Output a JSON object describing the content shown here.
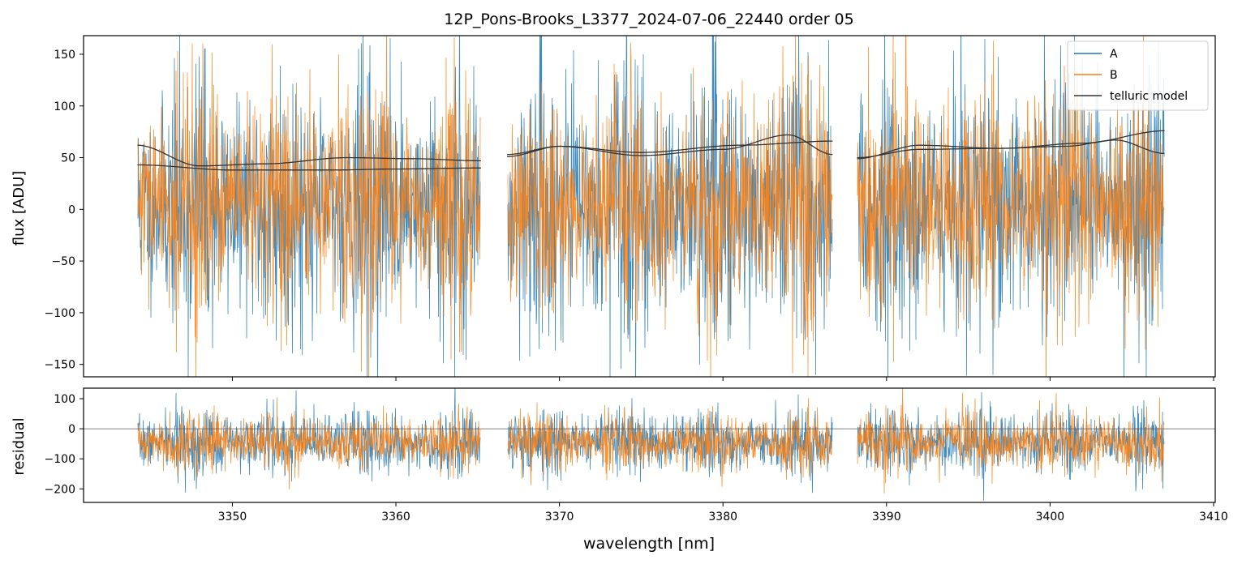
{
  "chart_data": [
    {
      "type": "line",
      "title": "12P_Pons-Brooks_L3377_2024-07-06_22440  order 05",
      "xlabel": "",
      "ylabel": "flux [ADU]",
      "xlim": [
        3340.9,
        3410.1
      ],
      "ylim": [
        -162,
        168
      ],
      "yticks": [
        -150,
        -100,
        -50,
        0,
        50,
        100,
        150
      ],
      "yticklabels": [
        "−150",
        "−100",
        "−50",
        "0",
        "50",
        "100",
        "150"
      ],
      "segments": [
        [
          3344.2,
          3365.2
        ],
        [
          3366.8,
          3386.7
        ],
        [
          3388.2,
          3407.0
        ]
      ],
      "legend": {
        "placement": "top-right",
        "entries": [
          {
            "label": "A",
            "color": "#1f77b4"
          },
          {
            "label": "B",
            "color": "#ff7f0e"
          },
          {
            "label": "telluric model",
            "color": "#333333"
          }
        ]
      },
      "series": [
        {
          "name": "A",
          "color": "#1f77b4",
          "center": 5,
          "amplitude": 58,
          "seed": 11
        },
        {
          "name": "B",
          "color": "#ff7f0e",
          "center": 5,
          "amplitude": 52,
          "seed": 29
        },
        {
          "name": "telluric model",
          "color": "#333333",
          "curves": [
            {
              "x": [
                3344.2,
                3348,
                3352,
                3357,
                3361,
                3365.2
              ],
              "y": [
                62,
                42,
                44,
                50,
                49,
                47
              ]
            },
            {
              "x": [
                3344.2,
                3350,
                3356,
                3360,
                3365.2
              ],
              "y": [
                43,
                38,
                38,
                39,
                40
              ]
            },
            {
              "x": [
                3366.8,
                3370,
                3375,
                3380,
                3384,
                3386.7
              ],
              "y": [
                51,
                61,
                52,
                58,
                72,
                53
              ]
            },
            {
              "x": [
                3366.8,
                3370,
                3375,
                3381,
                3386.7
              ],
              "y": [
                53,
                61,
                55,
                62,
                66
              ]
            },
            {
              "x": [
                3388.2,
                3392,
                3397,
                3401,
                3404,
                3407.0
              ],
              "y": [
                49,
                62,
                59,
                61,
                67,
                54
              ]
            },
            {
              "x": [
                3388.2,
                3392,
                3397,
                3402,
                3407.0
              ],
              "y": [
                50,
                58,
                59,
                64,
                76
              ]
            }
          ]
        }
      ]
    },
    {
      "type": "line",
      "title": "",
      "xlabel": "wavelength [nm]",
      "ylabel": "residual",
      "xlim": [
        3340.9,
        3410.1
      ],
      "ylim": [
        -245,
        135
      ],
      "xticks": [
        3350,
        3360,
        3370,
        3380,
        3390,
        3400,
        3410
      ],
      "xticklabels": [
        "3350",
        "3360",
        "3370",
        "3380",
        "3390",
        "3400",
        "3410"
      ],
      "yticks": [
        -200,
        -100,
        0,
        100
      ],
      "yticklabels": [
        "−200",
        "−100",
        "0",
        "100"
      ],
      "zero_line": 0,
      "series": [
        {
          "name": "A",
          "color": "#1f77b4",
          "center": -45,
          "amplitude": 50,
          "seed": 7
        },
        {
          "name": "B",
          "color": "#ff7f0e",
          "center": -45,
          "amplitude": 45,
          "seed": 41
        }
      ]
    }
  ]
}
